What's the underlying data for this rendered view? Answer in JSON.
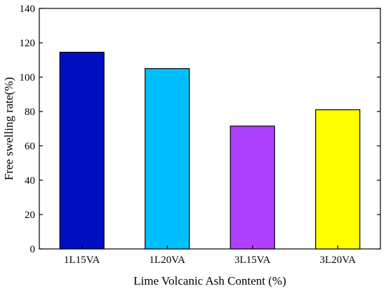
{
  "chart_data": {
    "type": "bar",
    "categories": [
      "1L15VA",
      "1L20VA",
      "3L15VA",
      "3L20VA"
    ],
    "values": [
      114.5,
      105,
      71.5,
      81
    ],
    "colors": [
      "#0010c0",
      "#00bfff",
      "#b040ff",
      "#ffff00"
    ],
    "xlabel": "Lime Volcanic Ash Content (%)",
    "ylabel": "Free swelling rate(%)",
    "ylim": [
      0,
      140
    ],
    "yticks": [
      0,
      20,
      40,
      60,
      80,
      100,
      120,
      140
    ],
    "grid": false,
    "legend": "none"
  }
}
